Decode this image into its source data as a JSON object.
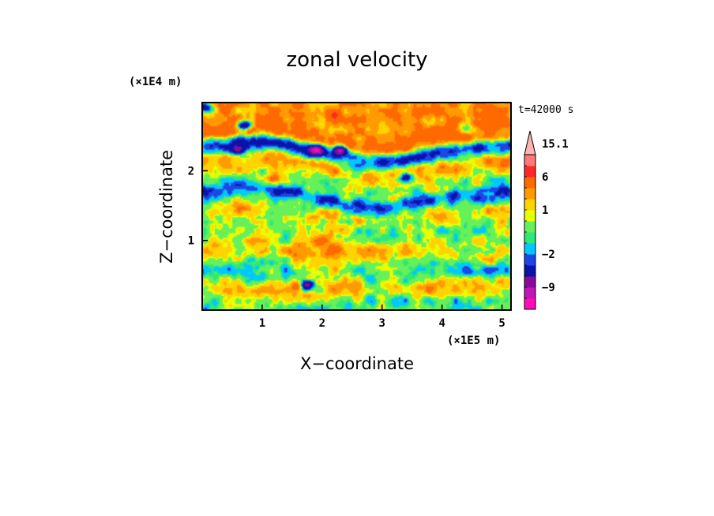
{
  "chart_data": {
    "type": "heatmap",
    "title": "zonal velocity",
    "xlabel": "X−coordinate",
    "ylabel": "Z−coordinate",
    "x_multiplier": "(×1E5 m)",
    "y_multiplier": "(×1E4 m)",
    "time_label": "t=42000 s",
    "xlim": [
      0,
      5.15
    ],
    "ylim": [
      0,
      2.98
    ],
    "x_ticks": [
      1,
      2,
      3,
      4,
      5
    ],
    "x_tick_labels": [
      "1",
      "2",
      "3",
      "4",
      "5"
    ],
    "y_ticks": [
      1,
      2
    ],
    "y_tick_labels": [
      "1",
      "2"
    ],
    "colorbar": {
      "levels": [
        -15.1,
        -12,
        -9,
        -6,
        -3,
        -2,
        -1,
        -0.5,
        0.5,
        1,
        2,
        3,
        6,
        9,
        12,
        15.1
      ],
      "labels": [
        {
          "value": 15.1,
          "text": "15.1"
        },
        {
          "value": 6,
          "text": "6"
        },
        {
          "value": 1,
          "text": "1"
        },
        {
          "value": -2,
          "text": "−2"
        },
        {
          "value": -9,
          "text": "−9"
        }
      ],
      "colors": [
        "#ff0cb8",
        "#c216b6",
        "#8a0a9c",
        "#0a14aa",
        "#1e46e6",
        "#00c8ff",
        "#2ee878",
        "#66f05a",
        "#e8ff00",
        "#ffd200",
        "#ff9b00",
        "#ff6a00",
        "#ff2828",
        "#ff7878",
        "#ffb4b4"
      ],
      "extend_max": true
    },
    "field_description": "zonal velocity on x-z plane; banded alternating positive/negative layers tilted, with strong negative cores near x=2.3, z=2.3 and a narrow mountain-wave anomaly near x=1.8 at the surface",
    "bands": [
      {
        "z": 2.85,
        "value": 2.5
      },
      {
        "z": 2.55,
        "value": 4.0
      },
      {
        "z": 2.35,
        "value": -3.0
      },
      {
        "z": 2.15,
        "value": 2.0
      },
      {
        "z": 1.85,
        "value": 0.0
      },
      {
        "z": 1.7,
        "value": -2.5
      },
      {
        "z": 1.45,
        "value": 1.2
      },
      {
        "z": 1.1,
        "value": 0.0
      },
      {
        "z": 0.8,
        "value": 1.2
      },
      {
        "z": 0.55,
        "value": -0.8
      },
      {
        "z": 0.3,
        "value": 1.5
      },
      {
        "z": 0.1,
        "value": -0.5
      }
    ],
    "cores": [
      {
        "x": 2.3,
        "z": 2.3,
        "value": -12
      },
      {
        "x": 1.9,
        "z": 2.3,
        "value": -9
      },
      {
        "x": 0.7,
        "z": 2.65,
        "value": -10
      },
      {
        "x": 0.6,
        "z": 2.3,
        "value": -6
      },
      {
        "x": 0.05,
        "z": 2.9,
        "value": -8
      },
      {
        "x": 3.4,
        "z": 1.9,
        "value": -7
      },
      {
        "x": 4.4,
        "z": 2.6,
        "value": -6
      },
      {
        "x": 1.75,
        "z": 0.35,
        "value": -10
      },
      {
        "x": 1.6,
        "z": 0.35,
        "value": 4
      },
      {
        "x": 1.2,
        "z": 1.9,
        "value": 3
      },
      {
        "x": 2.2,
        "z": 2.8,
        "value": 4
      }
    ]
  }
}
